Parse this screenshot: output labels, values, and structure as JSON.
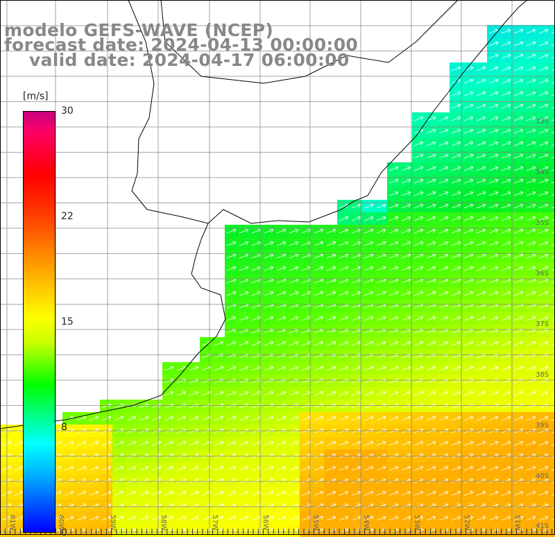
{
  "title": {
    "line1": "modelo GEFS-WAVE (NCEP)",
    "line2": "forecast date: 2024-04-13 00:00:00",
    "line3": "valid date: 2024-04-17 06:00:00"
  },
  "colorbar": {
    "unit": "[m/s]",
    "ticks": [
      "30",
      "22",
      "15",
      "8",
      "0"
    ],
    "colors": [
      "#0000ff",
      "#00ffff",
      "#00ff00",
      "#ffff00",
      "#ff0000",
      "#c80080"
    ]
  },
  "map": {
    "lon_labels": [
      "61W",
      "60W",
      "59W",
      "58W",
      "57W",
      "56W",
      "55W",
      "54W",
      "53W",
      "52W",
      "51W"
    ],
    "lat_labels": [
      "33S",
      "34S",
      "35S",
      "36S",
      "37S",
      "38S",
      "39S",
      "40S",
      "41S"
    ],
    "land_color": "#ffffff",
    "grid_color": "#888888",
    "arrow_color": "#ffffff"
  }
}
